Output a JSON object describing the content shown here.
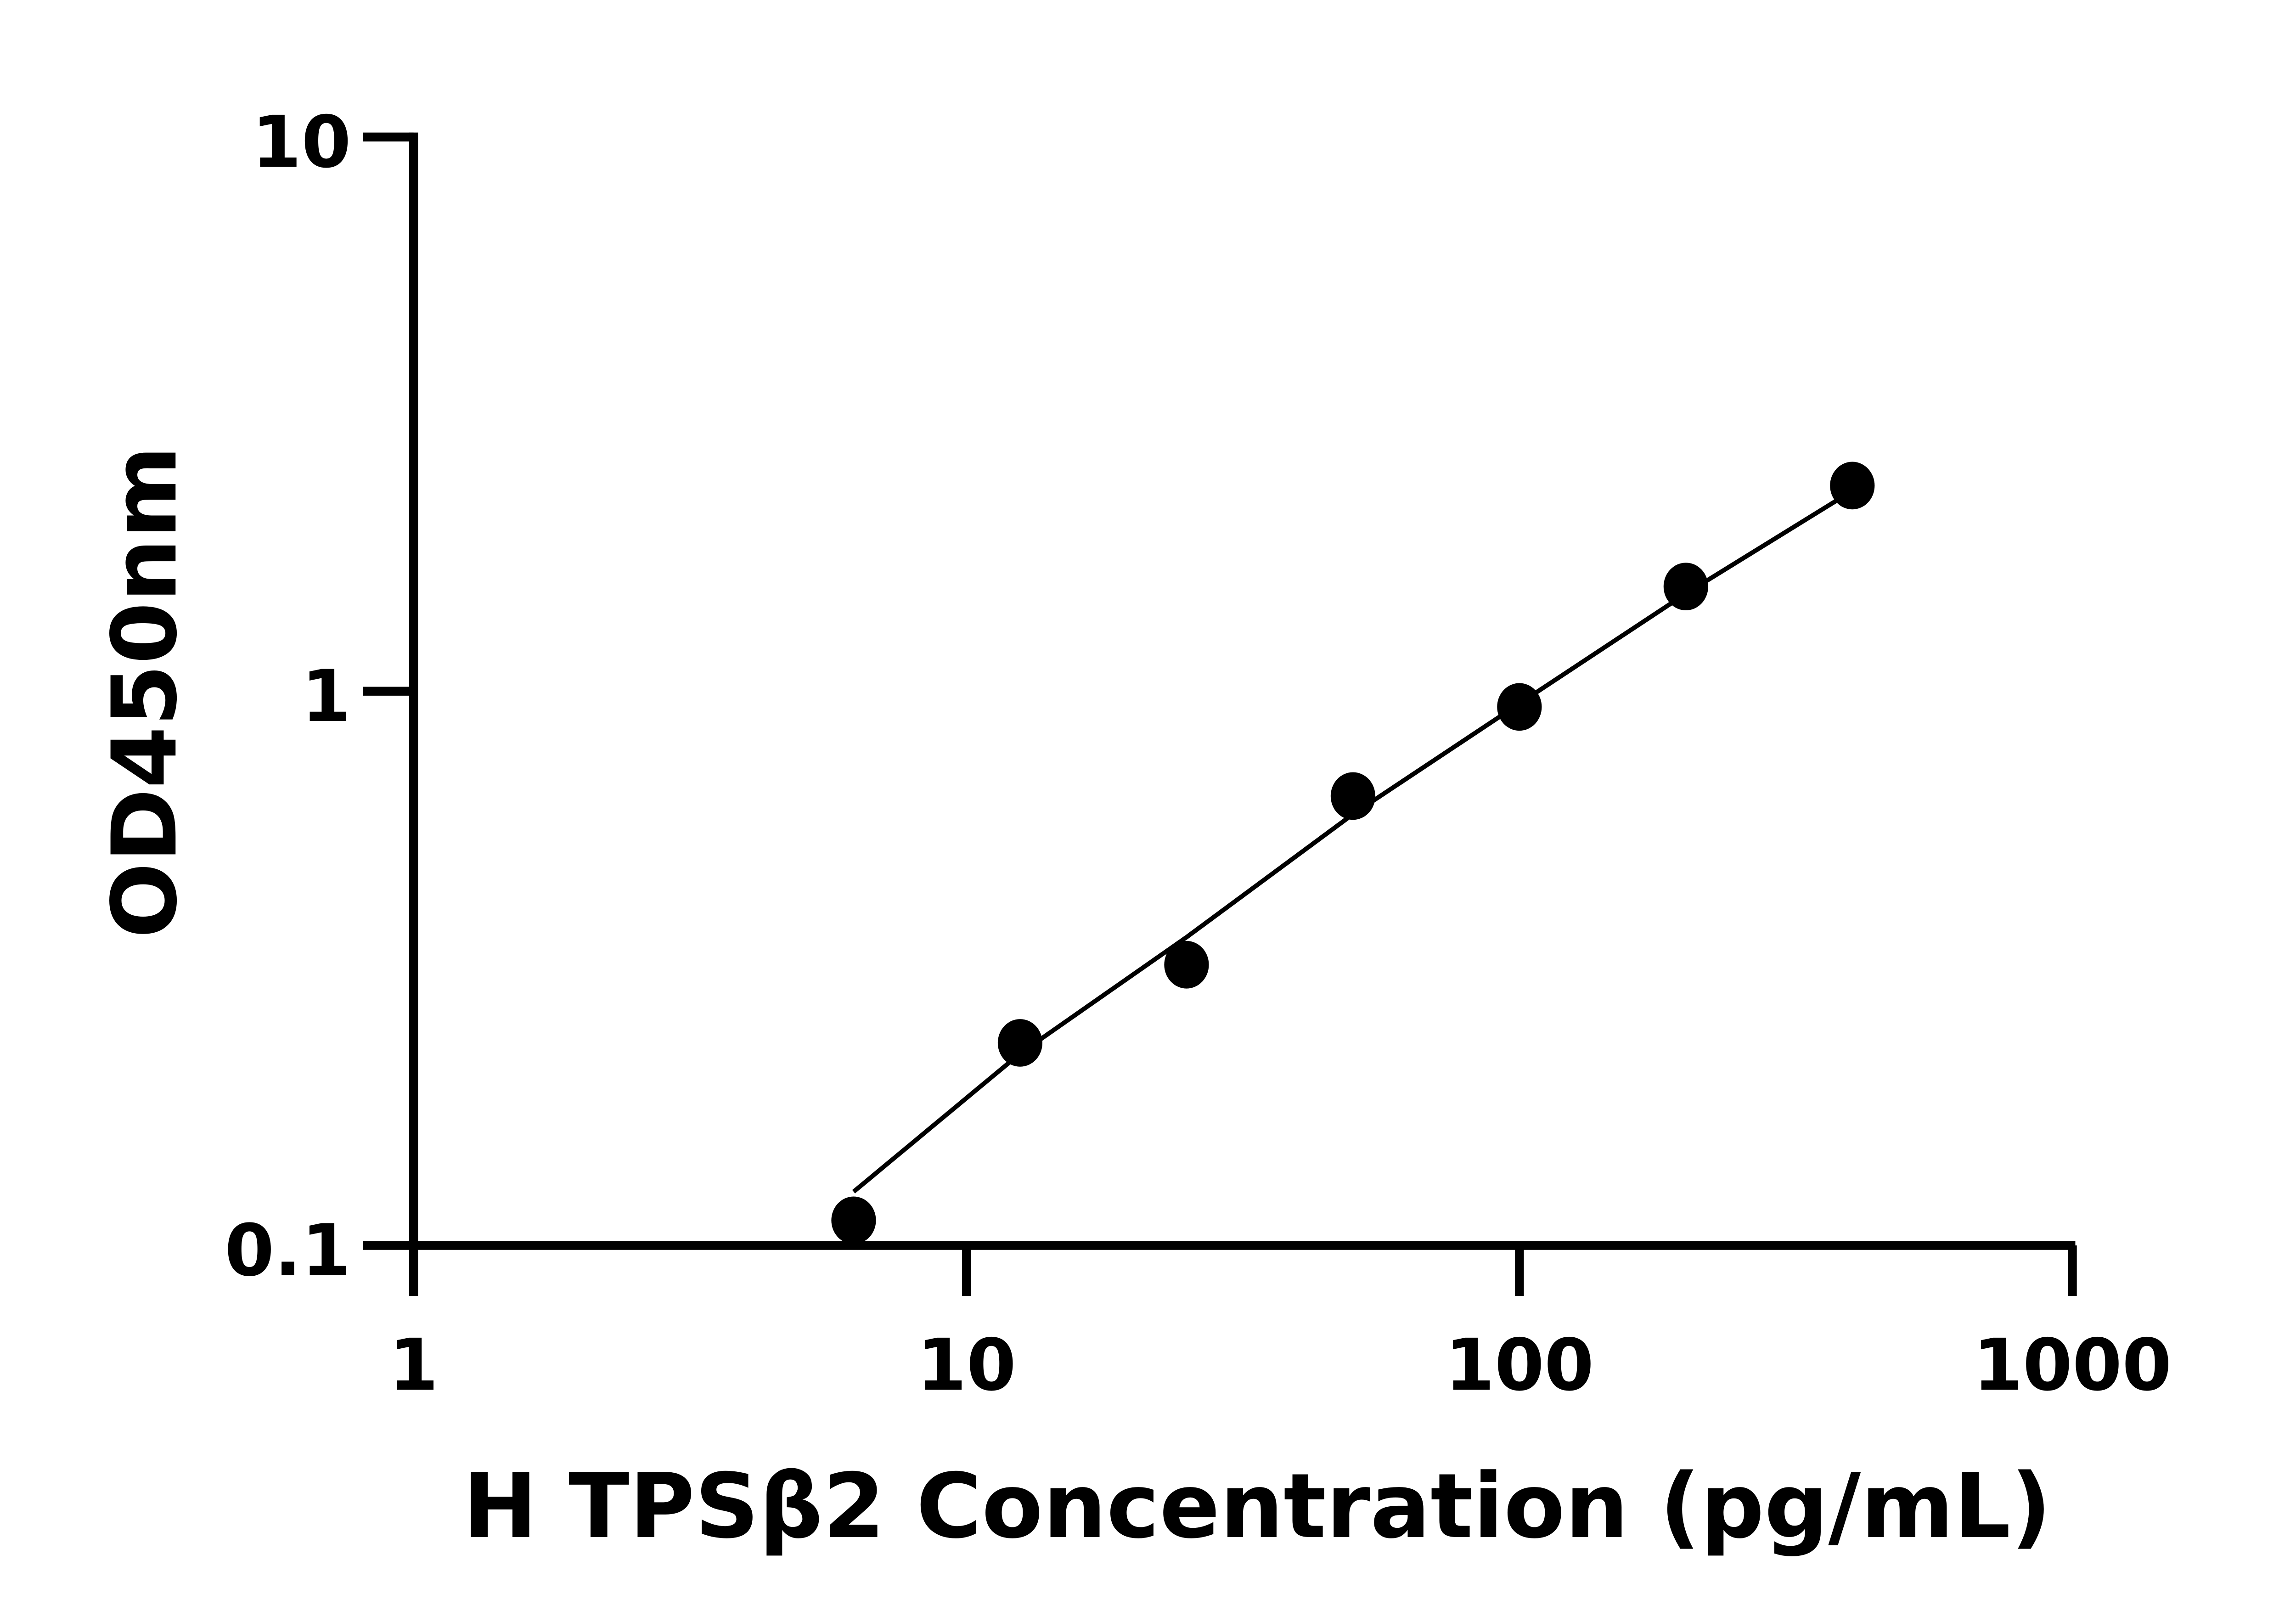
{
  "chart_data": {
    "type": "scatter",
    "title": "",
    "xlabel": "H TPSβ2 Concentration (pg/mL)",
    "ylabel": "OD450nm",
    "x_scale": "log",
    "y_scale": "log",
    "xlim": [
      1,
      1000
    ],
    "ylim": [
      0.1,
      10
    ],
    "x_ticks": [
      "1",
      "10",
      "100",
      "1000"
    ],
    "y_ticks": [
      "0.1",
      "1",
      "10"
    ],
    "grid": false,
    "x": [
      6.25,
      12.5,
      25,
      50,
      100,
      200,
      400
    ],
    "y": [
      0.111,
      0.232,
      0.321,
      0.647,
      0.937,
      1.545,
      2.35
    ],
    "fit_curve": {
      "x": [
        6.25,
        12.5,
        25,
        50,
        100,
        200,
        400
      ],
      "y": [
        0.125,
        0.222,
        0.36,
        0.6,
        0.95,
        1.5,
        2.3
      ]
    },
    "colors": {
      "points": "#000000",
      "line": "#000000",
      "axes": "#000000"
    }
  }
}
